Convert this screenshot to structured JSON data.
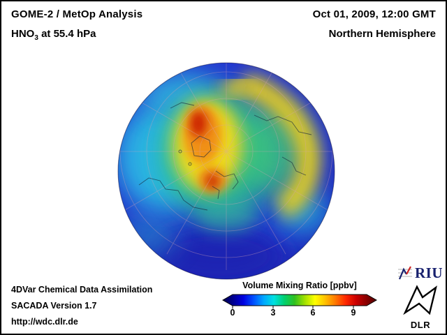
{
  "header": {
    "title": "GOME-2 / MetOp Analysis",
    "species": "HNO",
    "species_sub": "3",
    "level_suffix": " at 55.4 hPa",
    "datetime": "Oct 01, 2009, 12:00 GMT",
    "region": "Northern Hemisphere"
  },
  "footer": {
    "line1": "4DVar Chemical Data Assimilation",
    "line2": "SACADA Version 1.7",
    "line3": "http://wdc.dlr.de"
  },
  "colorbar": {
    "title": "Volume Mixing Ratio [ppbv]",
    "ticks": [
      "0",
      "3",
      "6",
      "9"
    ],
    "colors": [
      "#00004f",
      "#000090",
      "#0000e0",
      "#0050ff",
      "#00a8ff",
      "#00e0e0",
      "#00d070",
      "#30c020",
      "#a0e000",
      "#ffff00",
      "#ffc000",
      "#ff7800",
      "#ff2800",
      "#cc0000",
      "#8c0000",
      "#500000"
    ]
  },
  "logos": {
    "riu_text": "RIU",
    "dlr_text": "DLR"
  },
  "chart_data": {
    "type": "heatmap",
    "title": "GOME-2 / MetOp Analysis - HNO3 at 55.4 hPa",
    "subtitle": "Northern Hemisphere, Oct 01, 2009, 12:00 GMT",
    "variable": "HNO3 volume mixing ratio",
    "units": "ppbv",
    "projection": "orthographic globe, Northern Hemisphere polar view with graticule and coastlines",
    "colorbar": {
      "label": "Volume Mixing Ratio [ppbv]",
      "range": [
        0,
        10
      ],
      "ticks": [
        0,
        3,
        6,
        9
      ],
      "palette_order": "dark blue -> blue -> cyan -> green -> yellow -> orange -> red -> dark red",
      "legend_position": "bottom center, horizontal with arrow ends"
    },
    "features": [
      {
        "region": "polar vortex core near pole (Arctic/Greenland sector)",
        "approx_value_ppbv": 8.5
      },
      {
        "region": "secondary maximum over Scandinavia / Barents sector",
        "approx_value_ppbv": 8.0
      },
      {
        "region": "yellow tongue arcing from pole across Siberia toward East Asia",
        "approx_value_ppbv": 5.5
      },
      {
        "region": "green-turquoise collar surrounding the vortex",
        "approx_value_ppbv": 3.0
      },
      {
        "region": "mid-latitude background (North Atlantic / North Pacific, cyan)",
        "approx_value_ppbv": 2.0
      },
      {
        "region": "subtropical edge of visible disk (blue / dark blue)",
        "approx_value_ppbv": 1.0
      }
    ],
    "source_annotations": [
      "4DVar Chemical Data Assimilation",
      "SACADA Version 1.7",
      "http://wdc.dlr.de"
    ],
    "logos": [
      "RIU",
      "DLR"
    ]
  }
}
